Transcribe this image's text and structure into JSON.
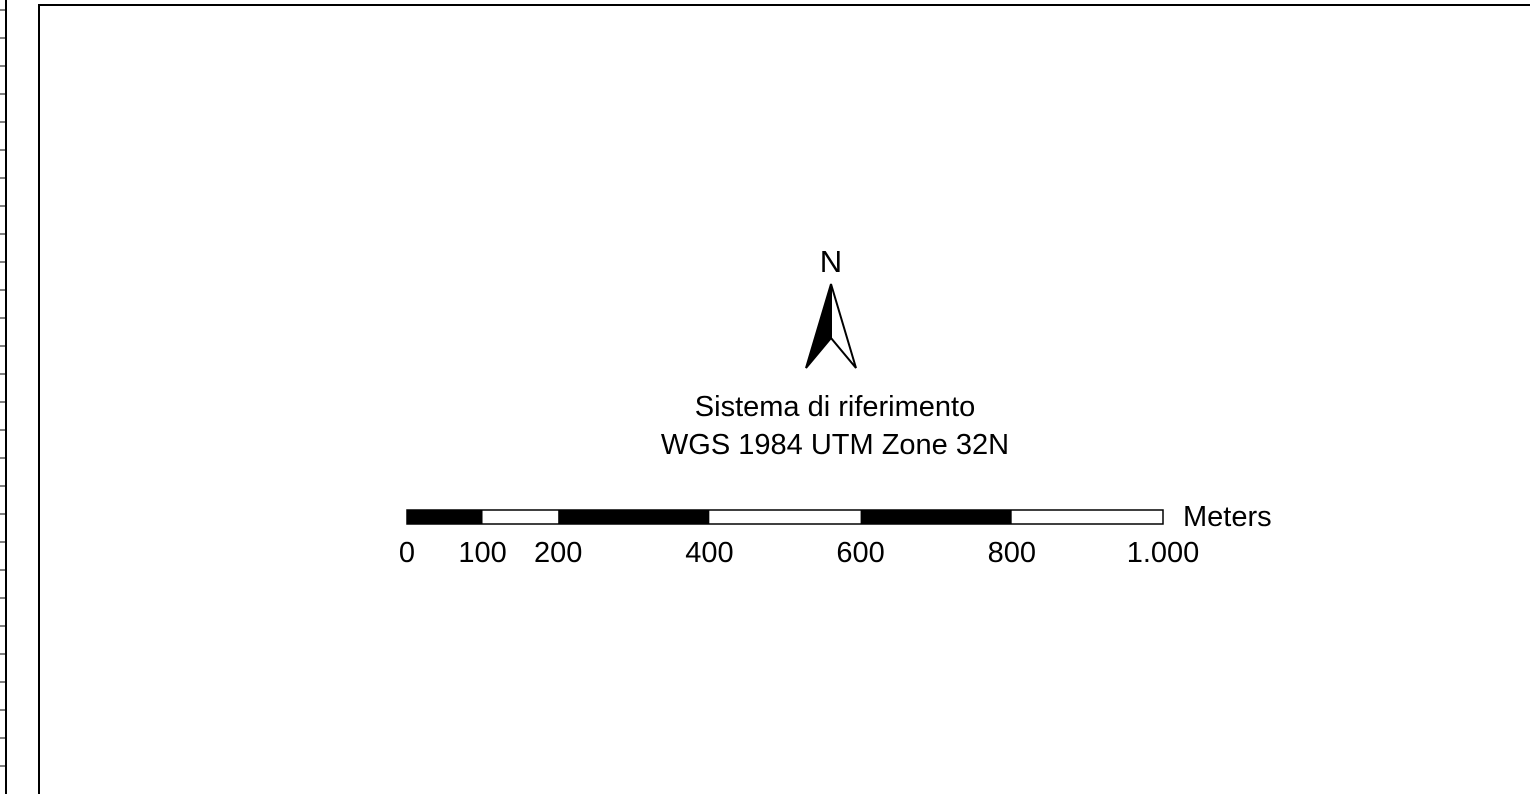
{
  "north_arrow": {
    "letter": "N",
    "icon": "north-arrow-icon"
  },
  "reference": {
    "title": "Sistema di riferimento",
    "crs": "WGS 1984 UTM Zone 32N"
  },
  "scalebar": {
    "units": "Meters",
    "max_value": 1000,
    "segments": [
      {
        "from": 0,
        "to": 100,
        "fill": "#000000"
      },
      {
        "from": 100,
        "to": 200,
        "fill": "#ffffff"
      },
      {
        "from": 200,
        "to": 400,
        "fill": "#000000"
      },
      {
        "from": 400,
        "to": 600,
        "fill": "#ffffff"
      },
      {
        "from": 600,
        "to": 800,
        "fill": "#000000"
      },
      {
        "from": 800,
        "to": 1000,
        "fill": "#ffffff"
      }
    ],
    "ticks": [
      {
        "value": 0,
        "label": "0"
      },
      {
        "value": 100,
        "label": "100"
      },
      {
        "value": 200,
        "label": "200"
      },
      {
        "value": 400,
        "label": "400"
      },
      {
        "value": 600,
        "label": "600"
      },
      {
        "value": 800,
        "label": "800"
      },
      {
        "value": 1000,
        "label": "1.000"
      }
    ]
  }
}
